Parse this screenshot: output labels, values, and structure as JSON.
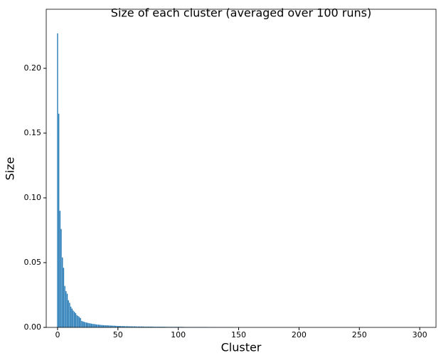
{
  "chart_data": {
    "type": "bar",
    "title": "Size of each cluster (averaged over 100 runs)",
    "x_label": "Cluster",
    "y_label": "Size",
    "color": "#1f77b4",
    "xlim": [
      -9.4,
      313.5
    ],
    "ylim": [
      0,
      0.2456
    ],
    "xticks": [
      0,
      50,
      100,
      150,
      200,
      250,
      300
    ],
    "yticks": [
      {
        "value": 0,
        "label": "0.00"
      },
      {
        "value": 0.05,
        "label": "0.05"
      },
      {
        "value": 0.1,
        "label": "0.10"
      },
      {
        "value": 0.15,
        "label": "0.15"
      },
      {
        "value": 0.2,
        "label": "0.20"
      }
    ],
    "x": [
      0,
      1,
      2,
      3,
      4,
      5,
      6,
      7,
      8,
      9,
      10,
      11,
      12,
      13,
      14,
      15,
      16,
      17,
      18,
      19,
      20,
      21,
      22,
      23,
      24,
      25,
      26,
      27,
      28,
      29,
      30,
      31,
      32,
      33,
      34,
      35,
      36,
      37,
      38,
      39,
      40,
      41,
      42,
      43,
      44,
      45,
      46,
      47,
      48,
      49,
      50,
      51,
      52,
      53,
      54,
      55,
      56,
      57,
      58,
      59,
      60,
      61,
      62,
      63,
      64,
      65,
      66,
      67,
      68,
      69,
      70,
      71,
      72,
      73,
      74,
      75,
      76,
      77,
      78,
      79,
      80,
      81,
      82,
      83,
      84,
      85,
      86,
      87,
      88,
      89,
      90,
      91,
      92,
      93,
      94,
      95,
      96,
      97,
      98,
      99,
      100,
      101,
      102,
      103,
      104,
      105,
      106,
      107,
      108,
      109,
      110,
      111,
      112,
      113,
      114,
      115,
      116,
      117,
      118,
      119,
      120,
      121,
      122,
      123,
      124,
      125,
      126,
      127,
      128,
      129,
      130,
      131,
      132,
      133,
      134,
      135,
      136,
      137,
      138,
      139,
      140,
      141,
      142,
      143,
      144,
      145
    ],
    "values": [
      0.227,
      0.165,
      0.09,
      0.076,
      0.054,
      0.046,
      0.032,
      0.028,
      0.026,
      0.021,
      0.019,
      0.016,
      0.0145,
      0.013,
      0.012,
      0.011,
      0.0095,
      0.0088,
      0.008,
      0.0072,
      0.005,
      0.0046,
      0.0043,
      0.004,
      0.0037,
      0.0035,
      0.0033,
      0.0031,
      0.0029,
      0.0027,
      0.0026,
      0.0025,
      0.0023,
      0.0022,
      0.0021,
      0.002,
      0.0019,
      0.0018,
      0.0017,
      0.0017,
      0.0016,
      0.0016,
      0.0015,
      0.0015,
      0.0014,
      0.0014,
      0.0013,
      0.0013,
      0.0012,
      0.0012,
      0.0011,
      0.0011,
      0.0011,
      0.001,
      0.001,
      0.001,
      0.0009,
      0.0009,
      0.0009,
      0.0009,
      0.0008,
      0.0008,
      0.0008,
      0.0008,
      0.0008,
      0.0007,
      0.0007,
      0.0007,
      0.0007,
      0.0007,
      0.0007,
      0.0007,
      0.0006,
      0.0006,
      0.0006,
      0.0006,
      0.0006,
      0.0006,
      0.0006,
      0.0006,
      0.0005,
      0.0005,
      0.0005,
      0.0005,
      0.0005,
      0.0005,
      0.0005,
      0.0005,
      0.0005,
      0.0005,
      0.0004,
      0.0004,
      0.0004,
      0.0004,
      0.0004,
      0.0004,
      0.0004,
      0.0004,
      0.0004,
      0.0004,
      0.0004,
      0.0004,
      0.0004,
      0.0004,
      0.0004,
      0.0003,
      0.0003,
      0.0003,
      0.0003,
      0.0003,
      0.0003,
      0.0003,
      0.0003,
      0.0003,
      0.0003,
      0.0003,
      0.0003,
      0.0003,
      0.0003,
      0.0003,
      0.0003,
      0.0003,
      0.0003,
      0.0003,
      0.0003,
      0.0002,
      0.0002,
      0.0002,
      0.0002,
      0.0002,
      0.0002,
      0.0002,
      0.0002,
      0.0002,
      0.0002,
      0.0002,
      0.0002,
      0.0002,
      0.0002,
      0.0002,
      0.0002,
      0.0002,
      0.0002,
      0.0002,
      0.0002,
      0.0002
    ]
  }
}
